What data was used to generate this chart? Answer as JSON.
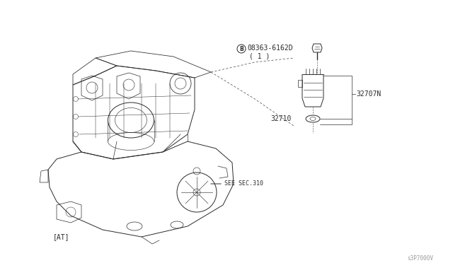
{
  "bg_color": "#ffffff",
  "line_color": "#2a2a2a",
  "fig_width": 6.4,
  "fig_height": 3.72,
  "dpi": 100,
  "watermark": "s3P7000V",
  "label_at": "[AT]",
  "label_see_sec": "SEE SEC.310",
  "label_32707n": "32707N",
  "label_32710": "32710",
  "label_bolt_part1": "®08363-6162D",
  "label_bolt_part2": "( 1 )",
  "label_bolt_B": "B"
}
